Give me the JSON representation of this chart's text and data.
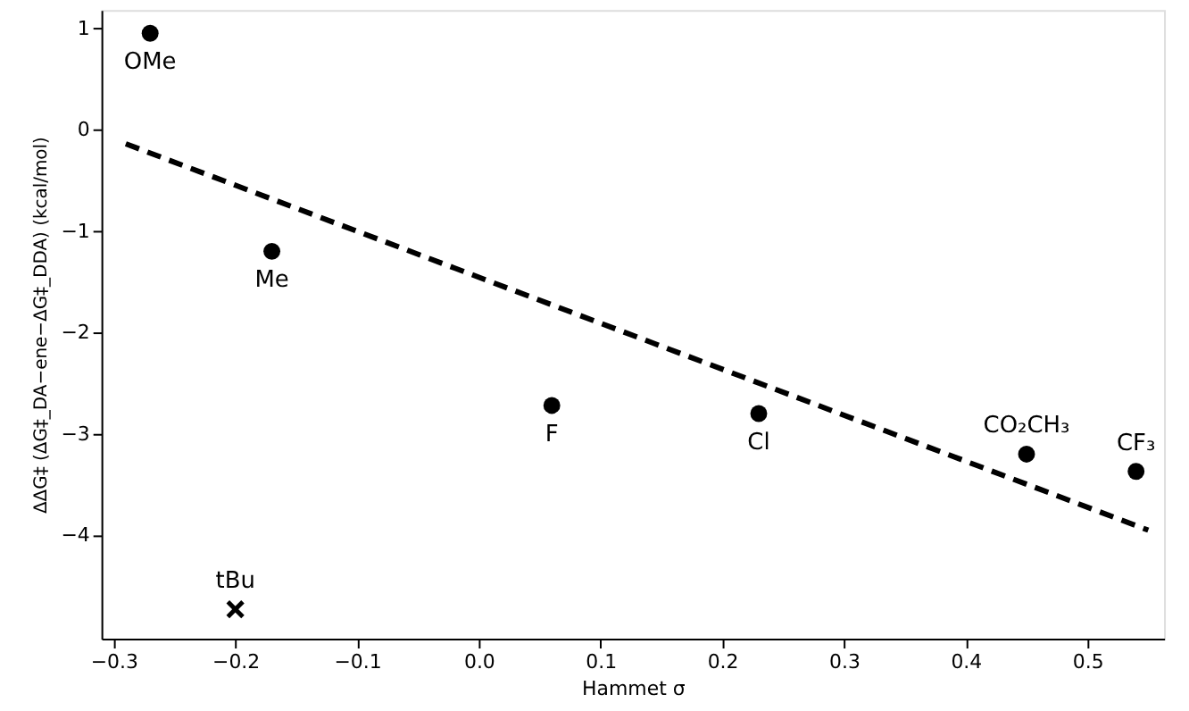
{
  "chart_data": {
    "type": "scatter",
    "xlabel": "Hammet σ",
    "ylabel": "ΔΔG‡ (ΔG‡_DA−ene−ΔG‡_DDA) (kcal/mol)",
    "xlim": [
      -0.31,
      0.563
    ],
    "ylim": [
      -5.02,
      1.18
    ],
    "xticks": [
      {
        "value": -0.3,
        "label": "−0.3"
      },
      {
        "value": -0.2,
        "label": "−0.2"
      },
      {
        "value": -0.1,
        "label": "−0.1"
      },
      {
        "value": 0,
        "label": "0.0"
      },
      0.1,
      0.2,
      0.3,
      0.4,
      0.5
    ],
    "yticks": [
      {
        "value": -4,
        "label": "−4"
      },
      {
        "value": -3,
        "label": "−3"
      },
      {
        "value": -2,
        "label": "−2"
      },
      {
        "value": -1,
        "label": "−1"
      },
      0,
      1
    ],
    "grid": false,
    "series": [
      {
        "type": "scatter",
        "marker": "circle",
        "color": "#000000",
        "x": [
          -0.27,
          -0.17,
          0.06,
          0.23,
          0.45,
          0.54
        ],
        "values": [
          0.95,
          -1.2,
          -2.72,
          -2.8,
          -3.2,
          -3.37
        ]
      },
      {
        "type": "scatter",
        "marker": "cross",
        "color": "#000000",
        "x": [
          -0.2
        ],
        "values": [
          -4.73
        ]
      },
      {
        "type": "line",
        "line_style": "dashed",
        "color": "#000000",
        "x": [
          -0.29,
          0.55
        ],
        "values": [
          -0.14,
          -3.95
        ]
      }
    ],
    "annotations": [
      {
        "text": "OMe",
        "x": -0.27,
        "y": 0.95
      },
      {
        "text": "Me",
        "x": -0.17,
        "y": -1.2
      },
      {
        "text": "F",
        "x": 0.06,
        "y": -2.72
      },
      {
        "text": "Cl",
        "x": 0.23,
        "y": -2.8
      },
      {
        "text": "CO₂CH₃",
        "x": 0.45,
        "y": -3.2
      },
      {
        "text": "CF₃",
        "x": 0.54,
        "y": -3.37
      },
      {
        "text": "tBu",
        "x": -0.2,
        "y": -4.73
      }
    ]
  }
}
